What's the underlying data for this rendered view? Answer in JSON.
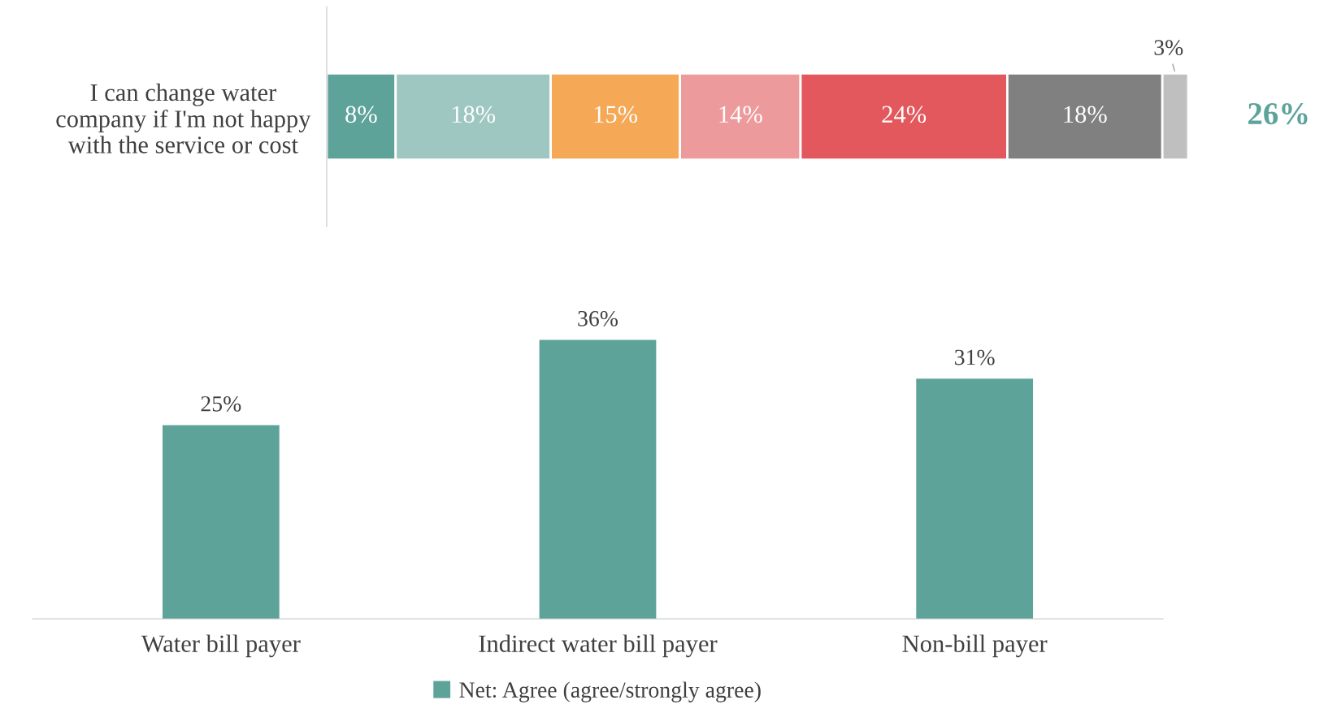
{
  "chart_data": [
    {
      "type": "bar",
      "orientation": "horizontal",
      "stacked": true,
      "categories": [
        "I can change water company if I'm not happy with the service or cost"
      ],
      "tick_labels": "y",
      "annotations": [
        "26%"
      ],
      "series": [
        {
          "color": "#5da39a",
          "values": [
            8
          ],
          "value_labels": [
            "8%"
          ]
        },
        {
          "color": "#9fc7c2",
          "values": [
            18
          ],
          "value_labels": [
            "18%"
          ]
        },
        {
          "color": "#f5a855",
          "values": [
            15
          ],
          "value_labels": [
            "15%"
          ]
        },
        {
          "color": "#ed9a9c",
          "values": [
            14
          ],
          "value_labels": [
            "14%"
          ]
        },
        {
          "color": "#e3585d",
          "values": [
            24
          ],
          "value_labels": [
            "24%"
          ]
        },
        {
          "color": "#808080",
          "values": [
            18
          ],
          "value_labels": [
            "18%"
          ]
        },
        {
          "color": "#bfbfbf",
          "values": [
            3
          ],
          "value_labels": [
            "3%"
          ]
        }
      ]
    },
    {
      "type": "bar",
      "categories": [
        "Water bill payer",
        "Indirect water bill payer",
        "Non-bill payer"
      ],
      "tick_labels": "x",
      "legend": "bottom",
      "series": [
        {
          "name": "Net: Agree (agree/strongly agree)",
          "color": "#5da39a",
          "values": [
            25,
            36,
            31
          ],
          "value_labels": [
            "25%",
            "36%",
            "31%"
          ]
        }
      ]
    }
  ]
}
